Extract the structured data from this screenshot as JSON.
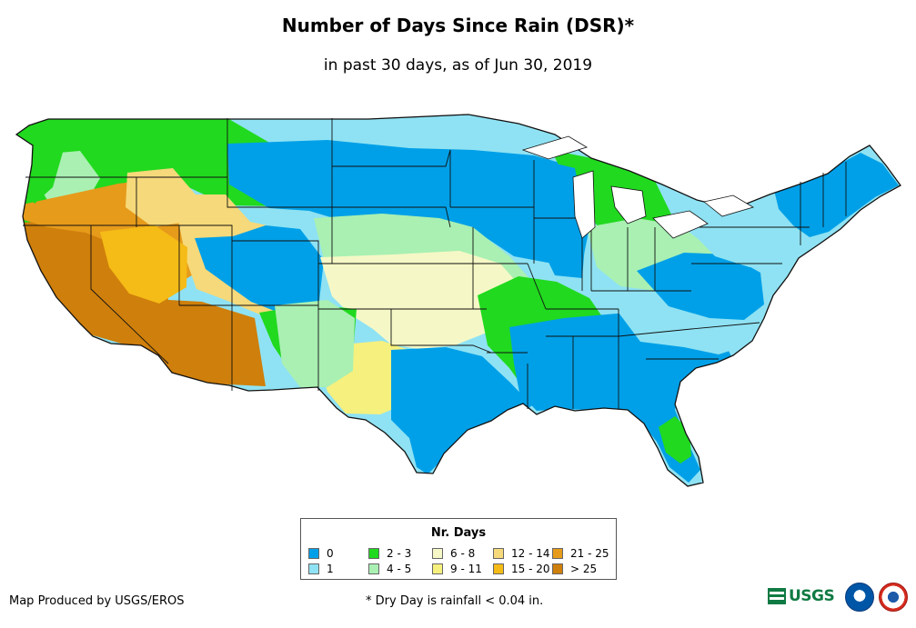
{
  "title": "Number of Days Since Rain (DSR)*",
  "subtitle": "in past 30 days, as of Jun 30, 2019",
  "legend": {
    "title": "Nr. Days",
    "items": [
      {
        "label": "0",
        "color": "#00a0e8"
      },
      {
        "label": "1",
        "color": "#8fe2f3"
      },
      {
        "label": "2 - 3",
        "color": "#21d91f"
      },
      {
        "label": "4 - 5",
        "color": "#a9f0b2"
      },
      {
        "label": "6 - 8",
        "color": "#f5f8c6"
      },
      {
        "label": "9 - 11",
        "color": "#f6f07e"
      },
      {
        "label": "12 - 14",
        "color": "#f6d97a"
      },
      {
        "label": "15 - 20",
        "color": "#f5bb16"
      },
      {
        "label": "21 - 25",
        "color": "#e69b1b"
      },
      {
        "label": "> 25",
        "color": "#cf7f0b"
      }
    ]
  },
  "footer": {
    "produced_by": "Map Produced by USGS/EROS",
    "note": "* Dry Day is rainfall < 0.04 in."
  },
  "logos": {
    "usgs_label": "USGS"
  },
  "map_colors": {
    "border": "#111111",
    "ocean": "#ffffff"
  }
}
